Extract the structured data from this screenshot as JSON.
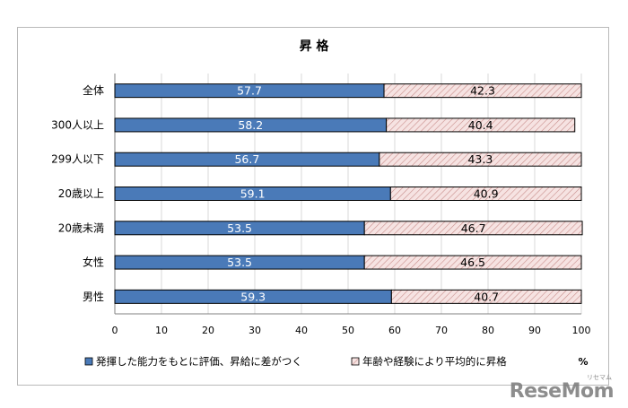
{
  "chart_data": {
    "type": "bar",
    "orientation": "horizontal",
    "stacked": true,
    "title": "昇 格",
    "categories": [
      "全体",
      "300人以上",
      "299人以下",
      "20歳以上",
      "20歳未満",
      "女性",
      "男性"
    ],
    "series": [
      {
        "name": "発揮した能力をもとに評価、昇給に差がつく",
        "values": [
          57.7,
          58.2,
          56.7,
          59.1,
          53.5,
          53.5,
          59.3
        ],
        "color": "#4a7ab8"
      },
      {
        "name": "年齢や経験により平均的に昇格",
        "values": [
          42.3,
          40.4,
          43.3,
          40.9,
          46.7,
          46.5,
          40.7
        ],
        "color": "#f2dcdb"
      }
    ],
    "xlim": [
      0,
      100
    ],
    "xticks": [
      "0",
      "10",
      "20",
      "30",
      "40",
      "50",
      "60",
      "70",
      "80",
      "90",
      "100"
    ],
    "unit": "%",
    "grid": true,
    "legend_position": "bottom"
  },
  "watermark": "ReseMom",
  "watermark_small": "リセマム"
}
